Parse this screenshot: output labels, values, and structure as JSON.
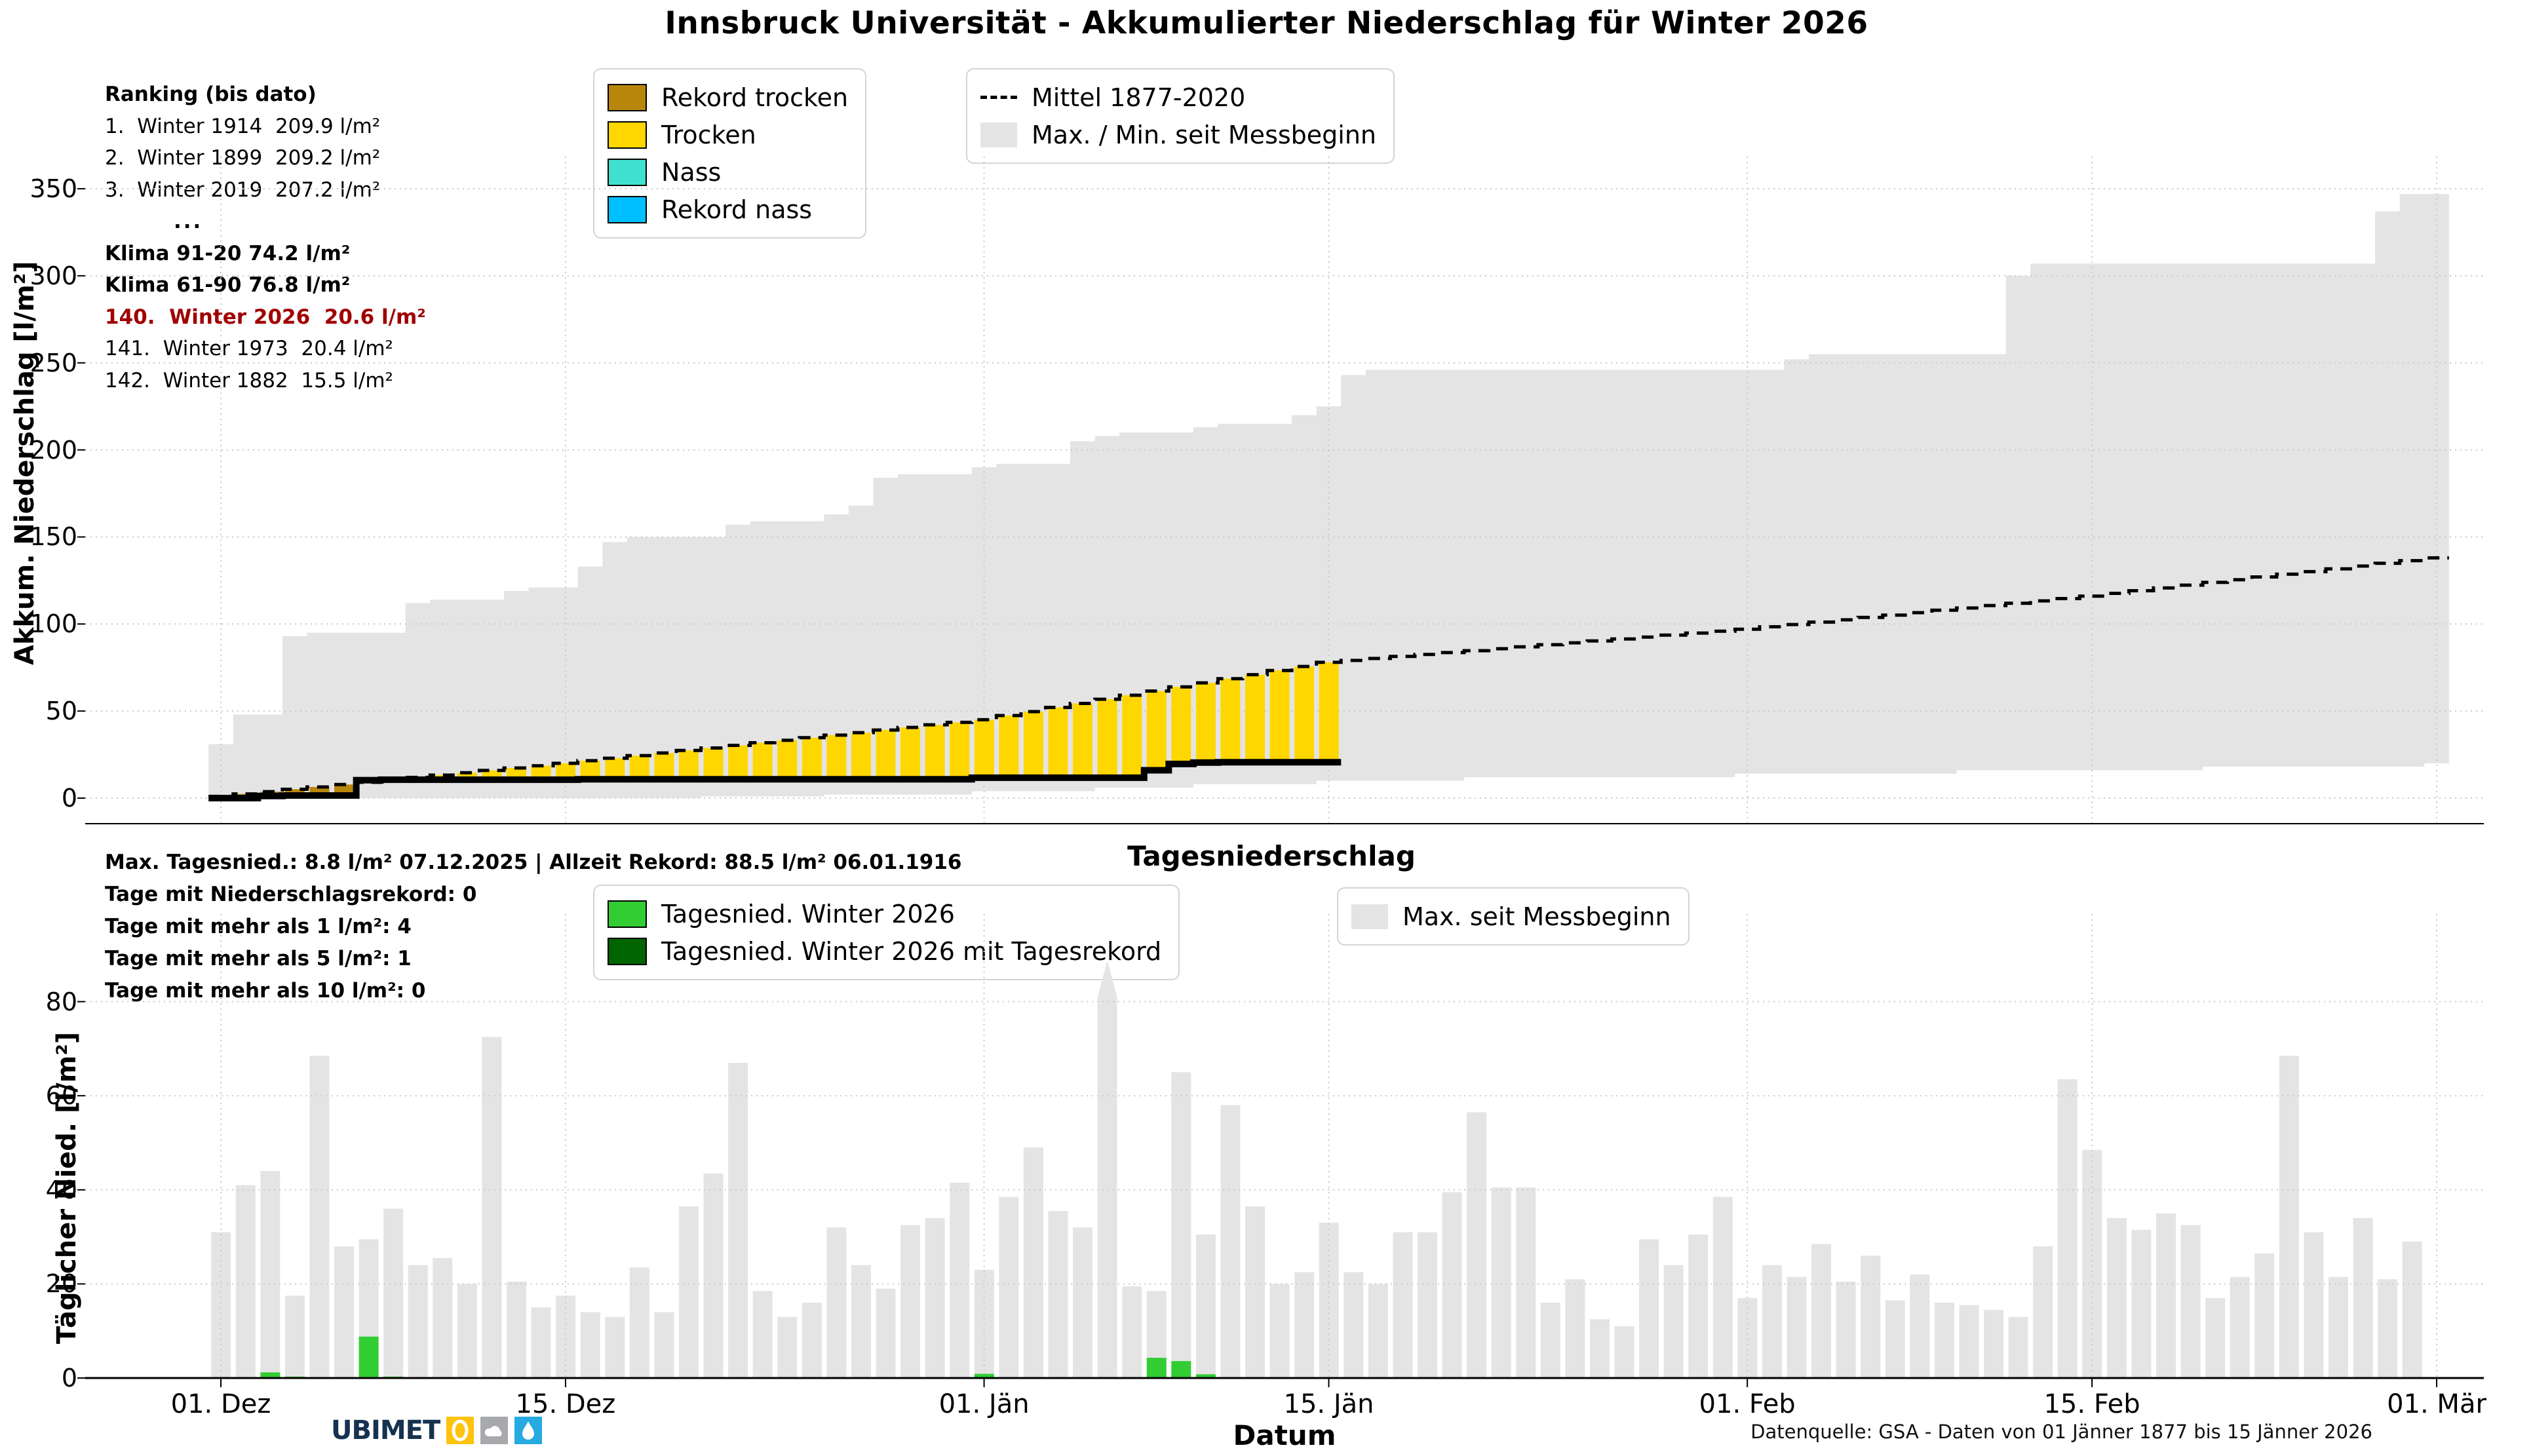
{
  "title": "Innsbruck Universität - Akkumulierter Niederschlag für Winter 2026",
  "subtitle_daily": "Tagesniederschlag",
  "colors": {
    "record_dry": "#b8860b",
    "dry": "#ffd700",
    "wet": "#40e0d0",
    "record_wet": "#00bfff",
    "band": "#e4e4e4",
    "daily_2026": "#32cd32",
    "daily_2026_record": "#006400",
    "accum_line": "#000000",
    "mean_line": "#000000",
    "highlight_red": "#a00000",
    "grid": "#c9c9c9"
  },
  "ranking_panel": {
    "lines": [
      {
        "text": "Ranking (bis dato)",
        "style": "bold"
      },
      {
        "text": "1.  Winter 1914  209.9 l/m²",
        "style": "normal"
      },
      {
        "text": "2.  Winter 1899  209.2 l/m²",
        "style": "normal"
      },
      {
        "text": "3.  Winter 2019  207.2 l/m²",
        "style": "normal"
      },
      {
        "text": "...",
        "style": "dots"
      },
      {
        "text": "Klima 91-20 74.2 l/m²",
        "style": "bold"
      },
      {
        "text": "Klima 61-90 76.8 l/m²",
        "style": "bold"
      },
      {
        "text": "140.  Winter 2026  20.6 l/m²",
        "style": "red"
      },
      {
        "text": "141.  Winter 1973  20.4 l/m²",
        "style": "normal"
      },
      {
        "text": "142.  Winter 1882  15.5 l/m²",
        "style": "normal"
      }
    ]
  },
  "stats_panel": {
    "lines": [
      "Max. Tagesnied.: 8.8 l/m² 07.12.2025 | Allzeit Rekord: 88.5 l/m² 06.01.1916",
      "Tage mit Niederschlagsrekord: 0",
      "Tage mit mehr als 1 l/m²: 4",
      "Tage mit mehr als 5 l/m²: 1",
      "Tage mit mehr als 10 l/m²: 0"
    ]
  },
  "legend_accum": {
    "items": [
      {
        "label": "Rekord trocken",
        "swatch": "record_dry",
        "edge": true
      },
      {
        "label": "Trocken",
        "swatch": "dry",
        "edge": true
      },
      {
        "label": "Nass",
        "swatch": "wet",
        "edge": true
      },
      {
        "label": "Rekord nass",
        "swatch": "record_wet",
        "edge": true
      }
    ]
  },
  "legend_mittel": {
    "items": [
      {
        "label": "Mittel 1877-2020",
        "swatch": "dash"
      },
      {
        "label": "Max. / Min. seit Messbeginn",
        "swatch": "band",
        "edge": false
      }
    ]
  },
  "legend_daily": {
    "items": [
      {
        "label": "Tagesnied. Winter 2026",
        "swatch": "daily_2026",
        "edge": true
      },
      {
        "label": "Tagesnied. Winter 2026 mit Tagesrekord",
        "swatch": "daily_2026_record",
        "edge": true
      }
    ]
  },
  "legend_dailymax": {
    "items": [
      {
        "label": "Max. seit Messbeginn",
        "swatch": "band",
        "edge": false
      }
    ]
  },
  "axes": {
    "top_ylabel": "Akkum. Niederschlag [l/m²]",
    "bottom_ylabel": "Täglicher Nied. [l/m²]",
    "xlabel": "Datum",
    "top_yticks": [
      0,
      50,
      100,
      150,
      200,
      250,
      300,
      350
    ],
    "bottom_yticks": [
      0,
      20,
      40,
      60,
      80
    ],
    "xticks": [
      {
        "label": "01. Dez",
        "day": 0
      },
      {
        "label": "15. Dez",
        "day": 14
      },
      {
        "label": "01. Jän",
        "day": 31
      },
      {
        "label": "15. Jän",
        "day": 45
      },
      {
        "label": "01. Feb",
        "day": 62
      },
      {
        "label": "15. Feb",
        "day": 76
      },
      {
        "label": "01. Mär",
        "day": 90
      }
    ]
  },
  "footer": {
    "logo_text": "UBIMET",
    "datasource": "Datenquelle: GSA - Daten von 01 Jänner 1877 bis 15 Jänner 2026"
  },
  "chart_data": [
    {
      "type": "area",
      "title": "Akkumulierter Niederschlag für Winter 2026",
      "xlabel": "Datum",
      "ylabel": "Akkum. Niederschlag [l/m²]",
      "x_range": [
        "01. Dez",
        "01. Mär"
      ],
      "days_total": 91,
      "ylim": [
        -15,
        368
      ],
      "grid": true,
      "legend_position": "top",
      "series": [
        {
          "name": "Max. seit Messbeginn (oberes Band)",
          "values": [
            31,
            48,
            48,
            93,
            95,
            95,
            95,
            95,
            112,
            114,
            114,
            114,
            119,
            121,
            121,
            133,
            147,
            150,
            150,
            150,
            150,
            157,
            159,
            159,
            159,
            163,
            168,
            184,
            186,
            186,
            186,
            190,
            192,
            192,
            192,
            205,
            208,
            210,
            210,
            210,
            213,
            215,
            215,
            215,
            220,
            225,
            243,
            246,
            246,
            246,
            246,
            246,
            246,
            246,
            246,
            246,
            246,
            246,
            246,
            246,
            246,
            246,
            246,
            246,
            252,
            255,
            255,
            255,
            255,
            255,
            255,
            255,
            255,
            300,
            307,
            307,
            307,
            307,
            307,
            307,
            307,
            307,
            307,
            307,
            307,
            307,
            307,
            307,
            337,
            347,
            347
          ]
        },
        {
          "name": "Min. seit Messbeginn (unteres Band)",
          "values": [
            0,
            0,
            0,
            0,
            0,
            0,
            0,
            0,
            0,
            0,
            0,
            0,
            0,
            0,
            0,
            0,
            0,
            0,
            0,
            0,
            1,
            1,
            1,
            1,
            1,
            2,
            2,
            2,
            2,
            2,
            2,
            4,
            4,
            4,
            4,
            4,
            6,
            6,
            6,
            6,
            8,
            8,
            8,
            8,
            8,
            10,
            10,
            10,
            10,
            10,
            10,
            12,
            12,
            12,
            12,
            12,
            12,
            12,
            12,
            12,
            12,
            12,
            14,
            14,
            14,
            14,
            14,
            14,
            14,
            14,
            14,
            16,
            16,
            16,
            16,
            16,
            16,
            16,
            16,
            16,
            16,
            18,
            18,
            18,
            18,
            18,
            18,
            18,
            18,
            18,
            20
          ]
        },
        {
          "name": "Mittel 1877-2020",
          "values": [
            1,
            2.4,
            3.7,
            5.1,
            6.4,
            7.8,
            9.1,
            10.5,
            11.9,
            13.2,
            14.6,
            15.9,
            17.3,
            18.6,
            20,
            21.5,
            22.9,
            24.4,
            25.9,
            27.4,
            28.8,
            30.3,
            31.8,
            33.2,
            34.7,
            36.2,
            37.6,
            39.1,
            40.6,
            42.1,
            43.5,
            45,
            47.4,
            49.7,
            52.1,
            54.4,
            56.8,
            59.1,
            61.5,
            63.9,
            66.2,
            68.6,
            70.9,
            73.3,
            75.6,
            78,
            79.1,
            80.2,
            81.4,
            82.5,
            83.6,
            84.7,
            85.8,
            86.9,
            88.1,
            89.2,
            90.3,
            91.4,
            92.5,
            93.6,
            94.8,
            95.9,
            97,
            98.4,
            99.7,
            101.1,
            102.4,
            103.8,
            105.1,
            106.5,
            107.9,
            109.2,
            110.6,
            111.9,
            113.3,
            114.6,
            116,
            117.6,
            119.1,
            120.7,
            122.3,
            123.9,
            125.4,
            127,
            128.6,
            130.1,
            131.7,
            133.3,
            134.9,
            136.4,
            138
          ]
        },
        {
          "name": "Akkum. Winter 2026 (bis 15. Jän)",
          "values": [
            0,
            0,
            1.2,
            1.5,
            1.5,
            1.5,
            10.3,
            10.6,
            10.6,
            10.6,
            10.6,
            10.6,
            10.6,
            10.6,
            10.6,
            10.8,
            10.8,
            10.8,
            10.8,
            10.8,
            10.8,
            10.8,
            10.8,
            10.8,
            10.8,
            10.8,
            10.8,
            10.8,
            10.8,
            10.8,
            10.8,
            11.7,
            11.7,
            11.7,
            11.7,
            11.7,
            11.7,
            11.7,
            16.0,
            19.6,
            20.4,
            20.6,
            20.6,
            20.6,
            20.6,
            20.6
          ]
        }
      ],
      "record_dry_days": 6,
      "final_accum_value": 20.6
    },
    {
      "type": "bar",
      "title": "Tagesniederschlag",
      "xlabel": "Datum",
      "ylabel": "Täglicher Nied. [l/m²]",
      "x_range": [
        "01. Dez",
        "01. Mär"
      ],
      "days_total": 91,
      "ylim": [
        0,
        98.6
      ],
      "grid": true,
      "record_bar": {
        "day": 36,
        "value": 88.5,
        "date": "06.01.1916"
      },
      "series": [
        {
          "name": "Max. seit Messbeginn",
          "values": [
            31,
            41,
            44,
            17.5,
            68.5,
            28,
            29.5,
            36,
            24,
            25.5,
            20,
            72.5,
            20.5,
            15,
            17.5,
            14,
            13,
            23.5,
            14,
            36.5,
            43.5,
            67,
            18.5,
            13,
            16,
            32,
            24,
            19,
            32.5,
            34,
            41.5,
            23,
            38.5,
            49,
            35.5,
            32,
            88.5,
            19.5,
            18.5,
            65,
            30.5,
            58,
            36.5,
            20,
            22.5,
            33,
            22.5,
            20,
            31,
            31,
            39.5,
            56.5,
            40.5,
            40.5,
            16,
            21,
            12.5,
            11,
            29.5,
            24,
            30.5,
            38.5,
            17,
            24,
            21.5,
            28.5,
            20.5,
            26,
            16.5,
            22,
            16,
            15.5,
            14.5,
            13,
            28,
            63.5,
            48.5,
            34,
            31.5,
            35,
            32.5,
            17,
            21.5,
            26.5,
            68.5,
            31,
            21.5,
            34,
            21,
            29,
            0
          ]
        },
        {
          "name": "Tagesnied. Winter 2026",
          "values": [
            0,
            0,
            1.2,
            0.3,
            0,
            0,
            8.8,
            0.3,
            0,
            0,
            0,
            0,
            0,
            0,
            0,
            0.2,
            0,
            0,
            0,
            0,
            0,
            0,
            0,
            0,
            0,
            0,
            0,
            0,
            0,
            0,
            0,
            0.9,
            0,
            0,
            0,
            0,
            0,
            0,
            4.3,
            3.6,
            0.8,
            0.2,
            0,
            0,
            0,
            0
          ]
        },
        {
          "name": "Tagesnied. Winter 2026 mit Tagesrekord",
          "values": []
        }
      ]
    }
  ]
}
